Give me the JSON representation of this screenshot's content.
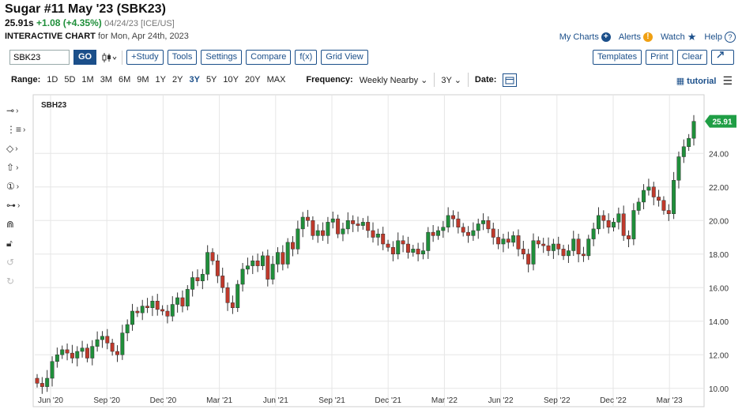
{
  "header": {
    "title": "Sugar #11 May '23 (SBK23)",
    "last": "25.91s",
    "change": "+1.08 (+4.35%)",
    "meta": "04/24/23 [ICE/US]",
    "subtitle_bold": "INTERACTIVE CHART",
    "subtitle_rest": "for Mon, Apr 24th, 2023"
  },
  "toplinks": {
    "my_charts": "My Charts",
    "alerts": "Alerts",
    "watch": "Watch",
    "help": "Help"
  },
  "toolbar": {
    "symbol_value": "SBK23",
    "go": "GO",
    "study": "+Study",
    "tools": "Tools",
    "settings": "Settings",
    "compare": "Compare",
    "fx": "f(x)",
    "grid_view": "Grid View",
    "templates": "Templates",
    "print": "Print",
    "clear": "Clear"
  },
  "rangebar": {
    "range_label": "Range:",
    "ranges": [
      "1D",
      "5D",
      "1M",
      "3M",
      "6M",
      "9M",
      "1Y",
      "2Y",
      "3Y",
      "5Y",
      "10Y",
      "20Y",
      "MAX"
    ],
    "active_range": "3Y",
    "frequency_label": "Frequency:",
    "frequency_value": "Weekly Nearby",
    "period_value": "3Y",
    "date_label": "Date:",
    "tutorial": "tutorial"
  },
  "colors": {
    "up": "#1f8f3a",
    "down": "#c0392b",
    "accent": "#1b4f8a",
    "last_tag": "#1f9e45"
  },
  "chart_data": {
    "type": "candlestick",
    "symbol_label": "SBH23",
    "last_price_tag": "25.91",
    "ylim": [
      9.0,
      27.4
    ],
    "yticks": [
      "10.00",
      "12.00",
      "14.00",
      "16.00",
      "18.00",
      "20.00",
      "22.00",
      "24.00"
    ],
    "xticks": [
      "Jun '20",
      "Sep '20",
      "Dec '20",
      "Mar '21",
      "Jun '21",
      "Sep '21",
      "Dec '21",
      "Mar '22",
      "Jun '22",
      "Sep '22",
      "Dec '22",
      "Mar '23"
    ],
    "close": [
      10.3,
      10.1,
      10.6,
      11.6,
      12.0,
      12.3,
      12.1,
      11.8,
      12.2,
      12.4,
      11.8,
      12.5,
      12.9,
      13.1,
      12.7,
      12.2,
      12.0,
      13.3,
      13.8,
      14.6,
      14.5,
      14.9,
      14.8,
      15.2,
      14.7,
      14.6,
      14.3,
      15.0,
      15.4,
      14.9,
      15.9,
      16.6,
      16.4,
      16.8,
      18.1,
      17.6,
      16.7,
      16.0,
      15.1,
      14.8,
      16.2,
      17.1,
      17.3,
      17.6,
      17.3,
      17.9,
      16.5,
      17.4,
      18.1,
      17.4,
      18.7,
      18.3,
      19.5,
      20.2,
      20.0,
      19.1,
      19.4,
      19.1,
      19.9,
      20.1,
      19.2,
      19.5,
      20.0,
      19.8,
      19.7,
      19.9,
      19.4,
      19.0,
      19.2,
      18.6,
      18.4,
      18.0,
      18.8,
      18.6,
      18.1,
      18.3,
      18.0,
      18.2,
      19.3,
      19.1,
      19.4,
      19.6,
      20.3,
      20.1,
      19.6,
      19.3,
      19.1,
      19.4,
      19.8,
      20.0,
      19.5,
      19.0,
      18.6,
      18.9,
      18.7,
      19.1,
      18.3,
      18.0,
      17.4,
      18.8,
      18.6,
      18.5,
      18.2,
      18.6,
      18.3,
      17.9,
      18.2,
      18.9,
      18.0,
      17.9,
      18.9,
      19.5,
      20.3,
      20.0,
      19.6,
      19.9,
      20.4,
      19.1,
      18.9,
      20.6,
      21.1,
      21.8,
      22.0,
      21.4,
      21.2,
      20.6,
      20.4,
      22.4,
      23.8,
      24.4,
      24.9,
      25.91
    ],
    "open": [
      10.6,
      10.3,
      10.1,
      10.6,
      11.6,
      12.0,
      12.3,
      12.1,
      11.8,
      12.2,
      12.4,
      11.8,
      12.5,
      12.9,
      13.1,
      12.7,
      12.2,
      12.0,
      13.3,
      13.8,
      14.6,
      14.5,
      14.9,
      14.8,
      15.2,
      14.7,
      14.6,
      14.3,
      15.0,
      15.4,
      14.9,
      15.9,
      16.6,
      16.4,
      16.8,
      18.1,
      17.6,
      16.7,
      16.0,
      15.1,
      14.8,
      16.2,
      17.1,
      17.3,
      17.6,
      17.3,
      17.9,
      16.5,
      17.4,
      18.1,
      17.4,
      18.7,
      18.3,
      19.5,
      20.2,
      20.0,
      19.1,
      19.4,
      19.1,
      19.9,
      20.1,
      19.2,
      19.5,
      20.0,
      19.8,
      19.7,
      19.9,
      19.4,
      19.0,
      19.2,
      18.6,
      18.4,
      18.0,
      18.8,
      18.6,
      18.1,
      18.3,
      18.0,
      18.2,
      19.3,
      19.1,
      19.4,
      19.6,
      20.3,
      20.1,
      19.6,
      19.3,
      19.1,
      19.4,
      19.8,
      20.0,
      19.5,
      19.0,
      18.6,
      18.9,
      18.7,
      19.1,
      18.3,
      18.0,
      17.4,
      18.8,
      18.6,
      18.5,
      18.2,
      18.6,
      18.3,
      17.9,
      18.2,
      18.9,
      18.0,
      17.9,
      18.9,
      19.5,
      20.3,
      20.0,
      19.6,
      19.9,
      20.4,
      19.1,
      18.9,
      20.6,
      21.1,
      21.8,
      22.0,
      21.4,
      21.2,
      20.6,
      20.4,
      22.4,
      23.8,
      24.4,
      24.9
    ]
  }
}
